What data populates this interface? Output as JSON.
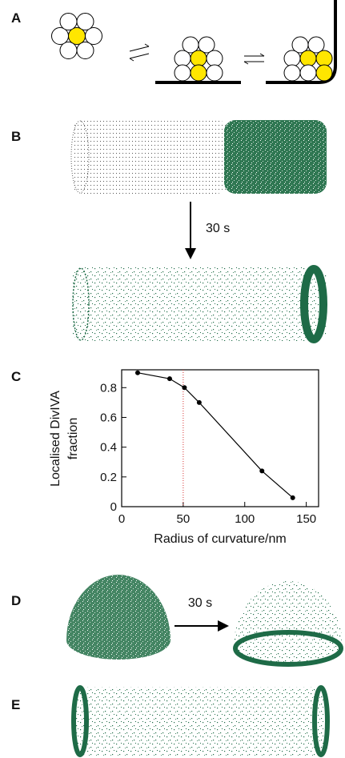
{
  "panels": [
    "A",
    "B",
    "C",
    "D",
    "E"
  ],
  "annotations": [
    "30 s",
    "30 s"
  ],
  "chart_data": {
    "type": "line",
    "xlabel": "Radius of curvature/nm",
    "ylabel": [
      "Localised DivIVA",
      "fraction"
    ],
    "x": [
      13,
      39,
      51,
      63,
      114,
      139
    ],
    "series": [
      {
        "color": "#000000",
        "values": [
          0.9,
          0.86,
          0.8,
          0.7,
          0.24,
          0.06
        ]
      }
    ],
    "xlim": [
      0,
      160
    ],
    "ylim": [
      0,
      0.92
    ],
    "xticks": [
      0,
      50,
      100,
      150
    ],
    "yticks": [
      0,
      0.2,
      0.4,
      0.6,
      0.8
    ],
    "vline": {
      "x": 50,
      "color": "#d83030"
    }
  }
}
